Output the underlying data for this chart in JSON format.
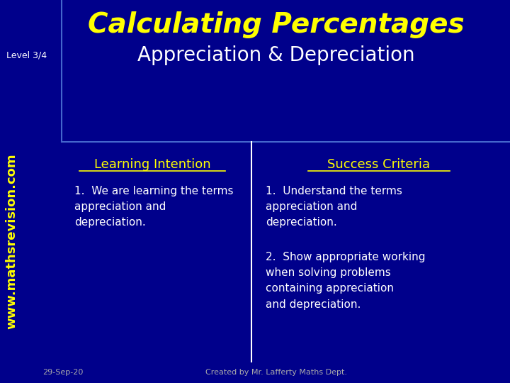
{
  "bg_color": "#00008B",
  "title": "Calculating Percentages",
  "subtitle": "Appreciation & Depreciation",
  "level_label": "Level 3/4",
  "website": "www.mathsrevision.com",
  "title_color": "#FFFF00",
  "subtitle_color": "#FFFFFF",
  "level_color": "#FFFFFF",
  "website_color": "#FFFF00",
  "header_line_color": "#4466CC",
  "divider_color": "#FFFFFF",
  "learning_intention_title": "Learning Intention",
  "success_criteria_title": "Success Criteria",
  "section_title_color": "#FFFF00",
  "body_text_color": "#FFFFFF",
  "learning_items": [
    "We are learning the terms\nappreciation and\ndepreciation."
  ],
  "success_items": [
    "Understand the terms\nappreciation and\ndepreciation.",
    "Show appropriate working\nwhen solving problems\ncontaining appreciation\nand depreciation."
  ],
  "footer_left": "29-Sep-20",
  "footer_right": "Created by Mr. Lafferty Maths Dept.",
  "footer_color": "#AAAAAA"
}
